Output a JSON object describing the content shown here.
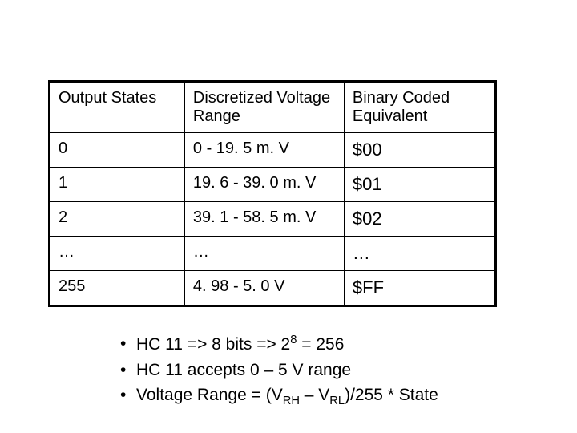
{
  "table": {
    "columns": [
      "Output States",
      "Discretized Voltage Range",
      "Binary Coded Equivalent"
    ],
    "col_widths": [
      "170px",
      "200px",
      "190px"
    ],
    "rows": [
      [
        "0",
        "0 - 19. 5 m. V",
        "$00"
      ],
      [
        "1",
        "19. 6 - 39. 0 m. V",
        "$01"
      ],
      [
        "2",
        "39. 1 - 58. 5 m. V",
        "$02"
      ],
      [
        "…",
        "…",
        "…"
      ],
      [
        "255",
        "4. 98 - 5. 0 V",
        "$FF"
      ]
    ],
    "border_color": "#000000",
    "background_color": "#ffffff",
    "header_fontsize": 20,
    "cell_fontsize": 20,
    "binary_fontsize": 22
  },
  "bullets": {
    "items": [
      "HC 11 => 8 bits => 2^8 = 256",
      "HC 11 accepts 0 – 5 V range",
      "Voltage Range = (V_RH – V_RL)/255 * State"
    ],
    "item0_html": "HC 11 => 8 bits => 2<sup>8</sup> = 256",
    "item1_html": "HC 11 accepts 0 – 5 V range",
    "item2_html": "Voltage Range = (V<sub>RH</sub> – V<sub>RL</sub>)/255 * State",
    "fontsize": 21
  }
}
